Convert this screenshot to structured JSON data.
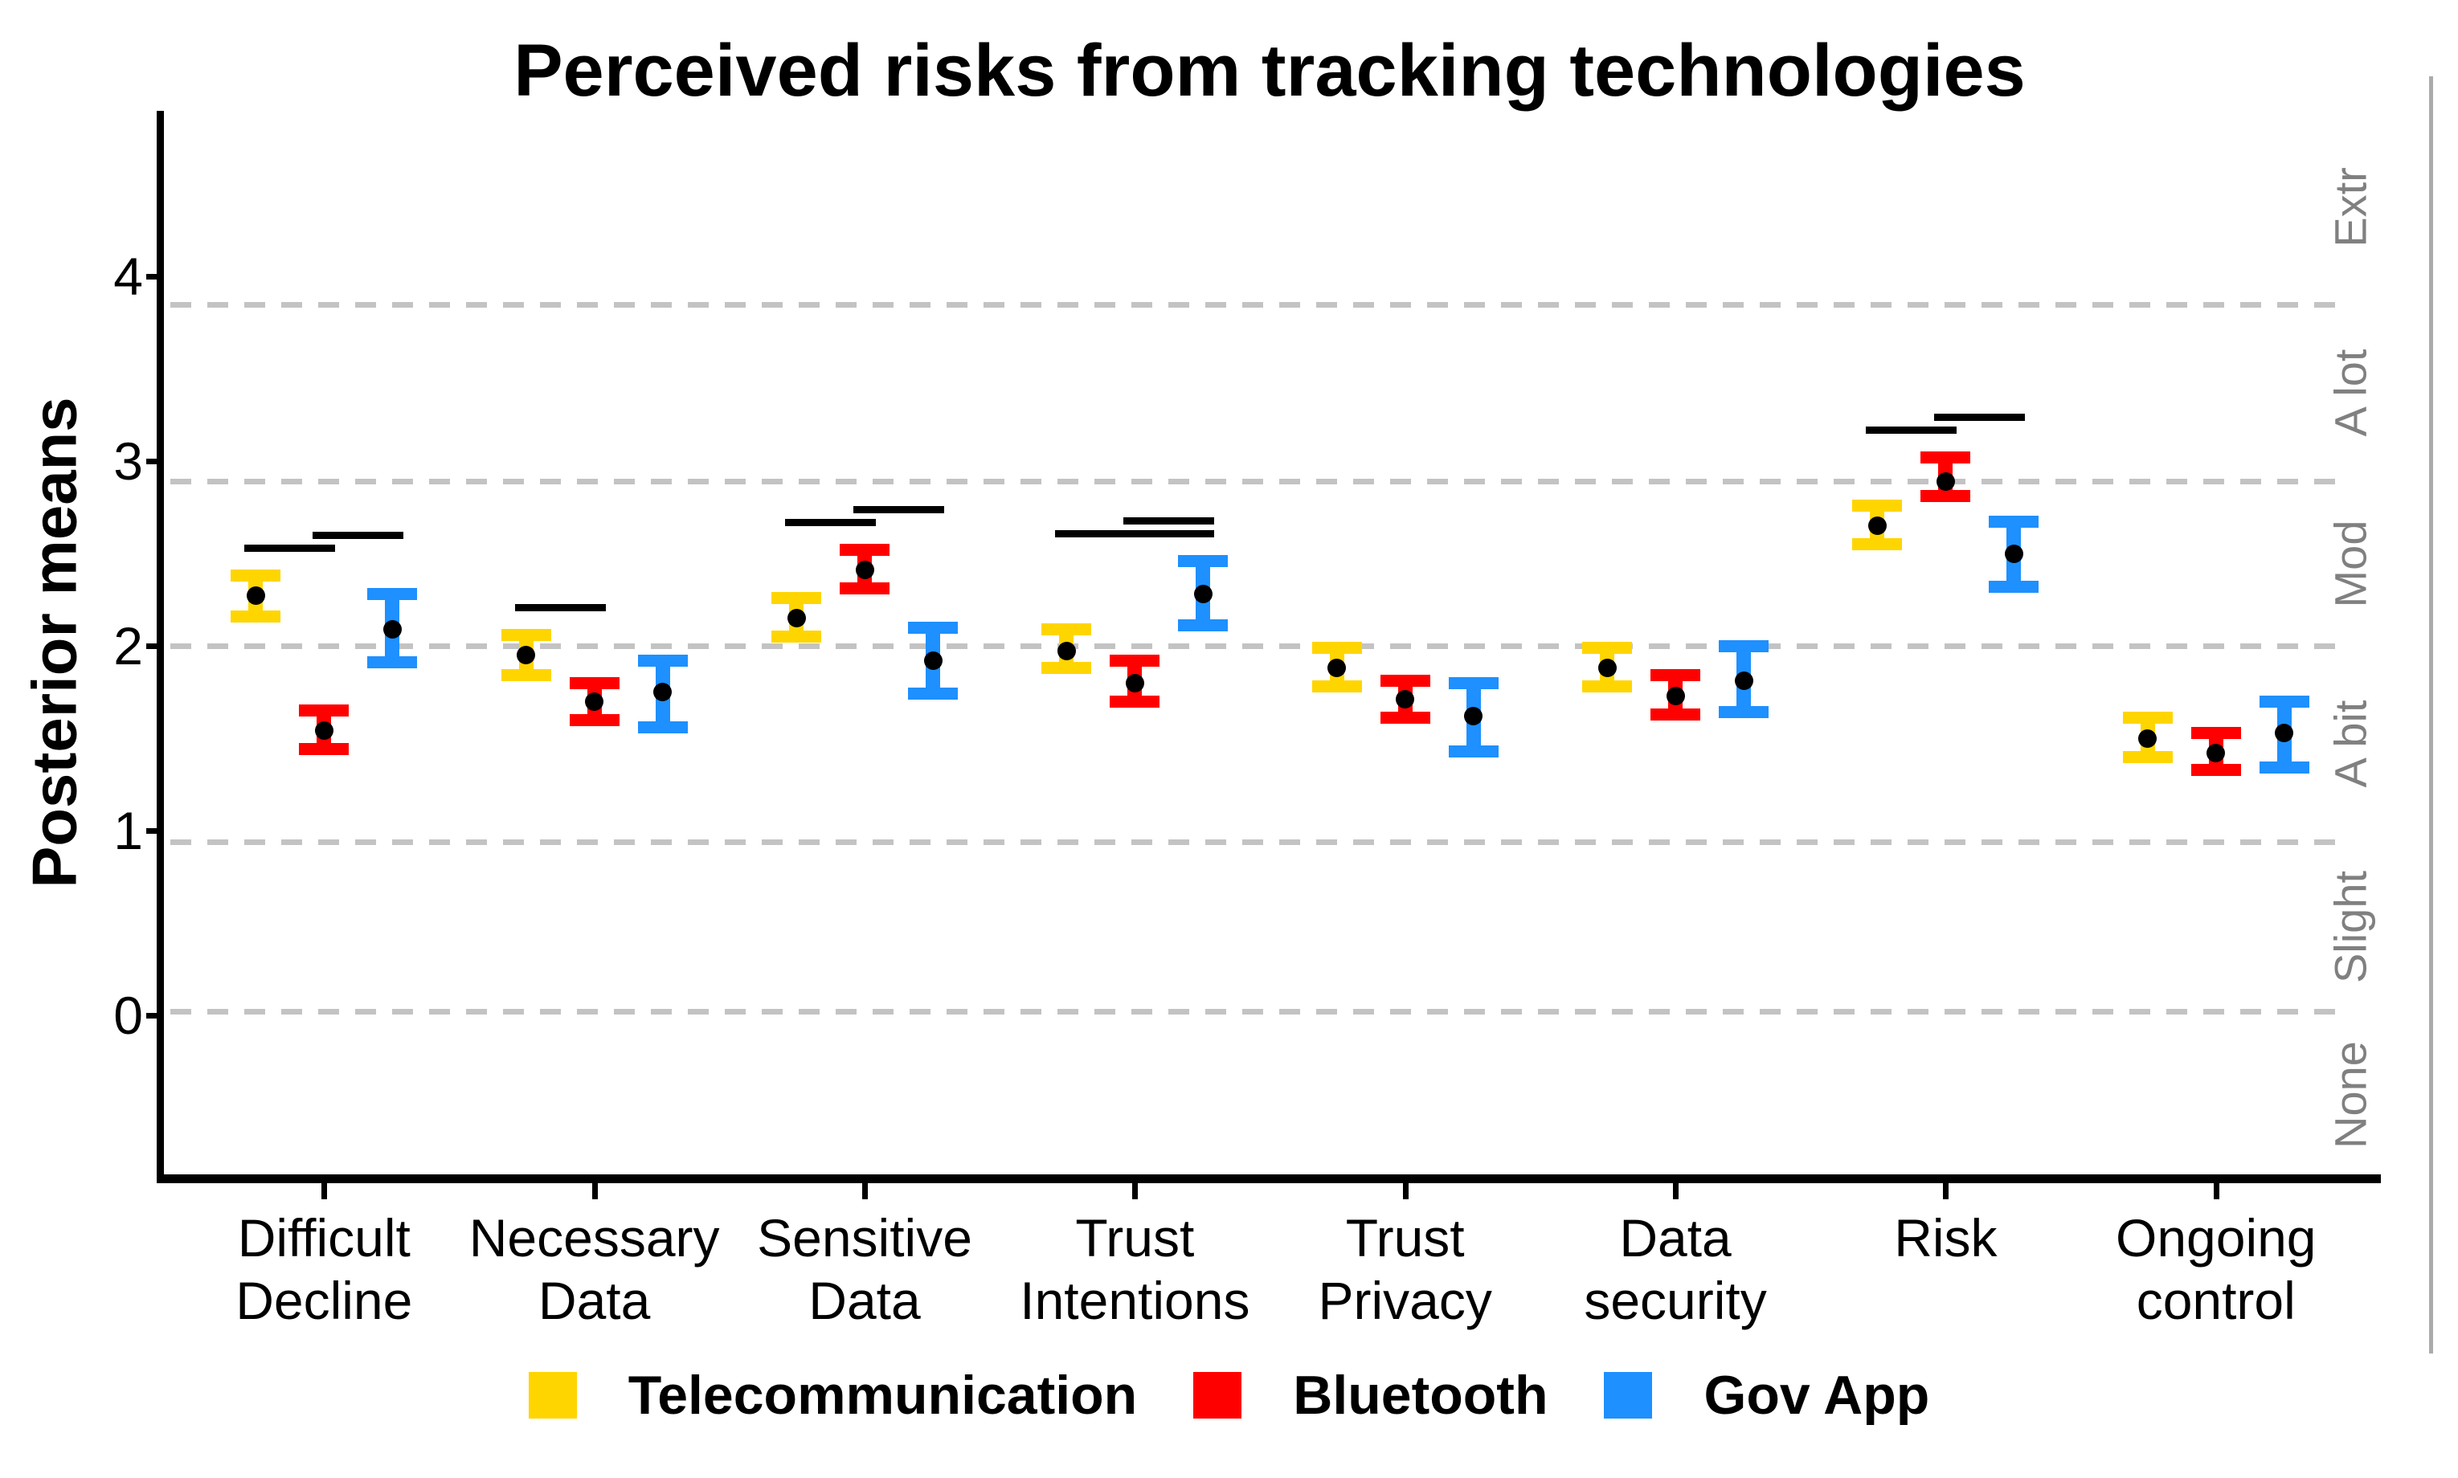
{
  "chart_data": {
    "type": "pointrange",
    "title": "Perceived risks from tracking technologies",
    "ylabel": "Posterior means",
    "xlabel": "",
    "y_ticks": [
      4,
      3,
      2,
      1,
      0
    ],
    "ylim": [
      -0.88,
      4.9
    ],
    "grid": "horizontal dashed cutpoint lines only",
    "legend_position": "bottom",
    "cutpoint_lines": [
      3.85,
      2.89,
      2.0,
      0.94,
      0.02
    ],
    "right_category_labels": [
      "Extr",
      "A lot",
      "Mod",
      "A bit",
      "Slight",
      "None"
    ],
    "right_label_color": "#808080",
    "categories": [
      {
        "label": "Difficult Decline",
        "lines": [
          "Difficult",
          "Decline"
        ]
      },
      {
        "label": "Necessary Data",
        "lines": [
          "Necessary",
          "Data"
        ]
      },
      {
        "label": "Sensitive Data",
        "lines": [
          "Sensitive",
          "Data"
        ]
      },
      {
        "label": "Trust Intentions",
        "lines": [
          "Trust",
          "Intentions"
        ]
      },
      {
        "label": "Trust Privacy",
        "lines": [
          "Trust",
          "Privacy"
        ]
      },
      {
        "label": "Data security",
        "lines": [
          "Data",
          "security"
        ]
      },
      {
        "label": "Risk",
        "lines": [
          "Risk"
        ]
      },
      {
        "label": "Ongoing control",
        "lines": [
          "Ongoing",
          "control"
        ]
      }
    ],
    "series": [
      {
        "name": "Telecommunication",
        "color": "#FFD500",
        "points": [
          {
            "mean": 2.27,
            "lo": 2.16,
            "hi": 2.38
          },
          {
            "mean": 1.95,
            "lo": 1.84,
            "hi": 2.06
          },
          {
            "mean": 2.15,
            "lo": 2.05,
            "hi": 2.26
          },
          {
            "mean": 1.97,
            "lo": 1.88,
            "hi": 2.09
          },
          {
            "mean": 1.88,
            "lo": 1.78,
            "hi": 1.99
          },
          {
            "mean": 1.88,
            "lo": 1.78,
            "hi": 1.99
          },
          {
            "mean": 2.65,
            "lo": 2.55,
            "hi": 2.76
          },
          {
            "mean": 1.5,
            "lo": 1.4,
            "hi": 1.61
          }
        ]
      },
      {
        "name": "Bluetooth",
        "color": "#FF0000",
        "points": [
          {
            "mean": 1.54,
            "lo": 1.44,
            "hi": 1.65
          },
          {
            "mean": 1.7,
            "lo": 1.6,
            "hi": 1.8
          },
          {
            "mean": 2.41,
            "lo": 2.31,
            "hi": 2.52
          },
          {
            "mean": 1.8,
            "lo": 1.7,
            "hi": 1.92
          },
          {
            "mean": 1.71,
            "lo": 1.61,
            "hi": 1.81
          },
          {
            "mean": 1.73,
            "lo": 1.63,
            "hi": 1.84
          },
          {
            "mean": 2.89,
            "lo": 2.81,
            "hi": 3.02
          },
          {
            "mean": 1.42,
            "lo": 1.33,
            "hi": 1.53
          }
        ]
      },
      {
        "name": "Gov App",
        "color": "#1E90FF",
        "points": [
          {
            "mean": 2.09,
            "lo": 1.91,
            "hi": 2.28
          },
          {
            "mean": 1.75,
            "lo": 1.56,
            "hi": 1.92
          },
          {
            "mean": 1.92,
            "lo": 1.74,
            "hi": 2.1
          },
          {
            "mean": 2.28,
            "lo": 2.11,
            "hi": 2.46
          },
          {
            "mean": 1.62,
            "lo": 1.43,
            "hi": 1.8
          },
          {
            "mean": 1.81,
            "lo": 1.64,
            "hi": 2.0
          },
          {
            "mean": 2.5,
            "lo": 2.32,
            "hi": 2.67
          },
          {
            "mean": 1.53,
            "lo": 1.34,
            "hi": 1.7
          }
        ]
      }
    ],
    "significance_bars": [
      {
        "category": 0,
        "series_from": 0,
        "series_to": 1,
        "y": 2.53
      },
      {
        "category": 0,
        "series_from": 1,
        "series_to": 2,
        "y": 2.6
      },
      {
        "category": 1,
        "series_from": 0,
        "series_to": 1,
        "y": 2.21
      },
      {
        "category": 2,
        "series_from": 0,
        "series_to": 1,
        "y": 2.67
      },
      {
        "category": 2,
        "series_from": 1,
        "series_to": 2,
        "y": 2.74
      },
      {
        "category": 3,
        "series_from": 0,
        "series_to": 2,
        "y": 2.61
      },
      {
        "category": 3,
        "series_from": 1,
        "series_to": 2,
        "y": 2.68
      },
      {
        "category": 6,
        "series_from": 0,
        "series_to": 1,
        "y": 3.17
      },
      {
        "category": 6,
        "series_from": 1,
        "series_to": 2,
        "y": 3.24
      }
    ],
    "point_color": "#000000",
    "grid_color": "#c3c3c3",
    "axis_color": "#000000"
  }
}
